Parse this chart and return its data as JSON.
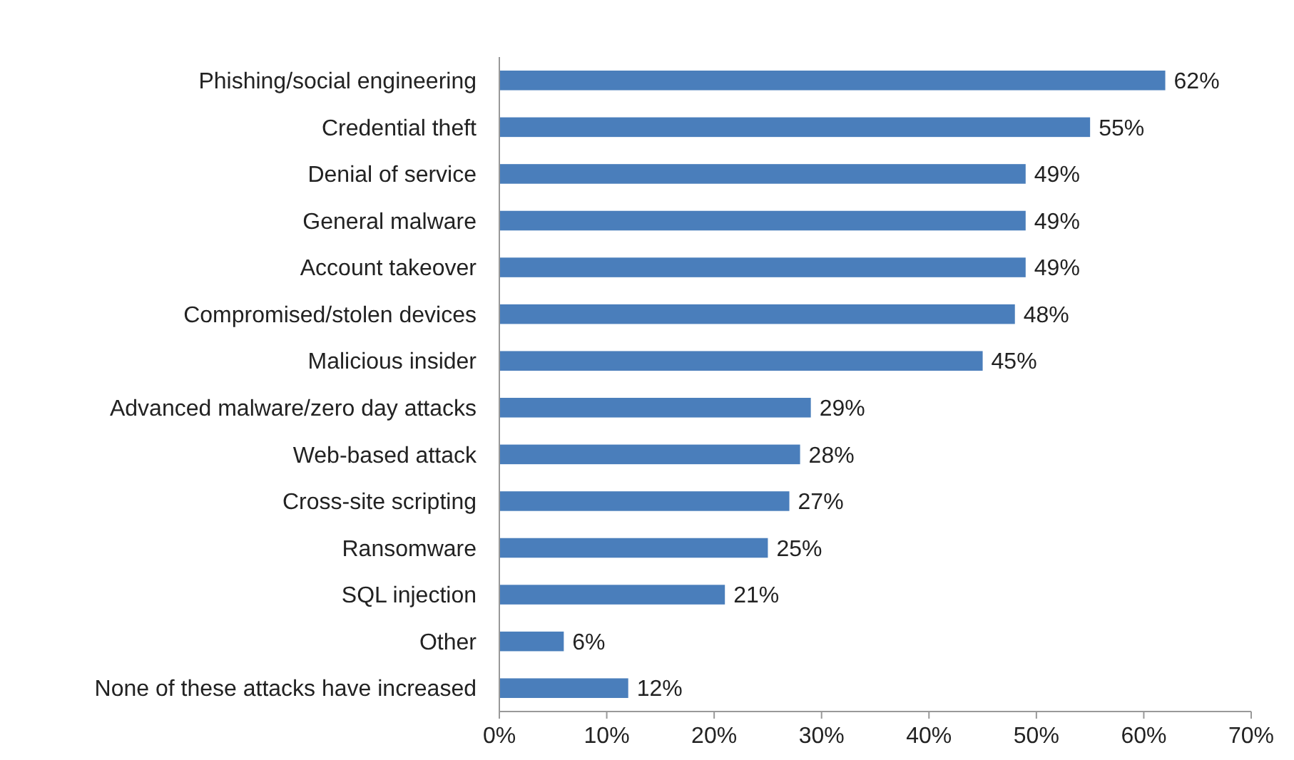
{
  "chart_data": {
    "type": "bar",
    "orientation": "horizontal",
    "categories": [
      "Phishing/social engineering",
      "Credential theft",
      "Denial of service",
      "General malware",
      "Account takeover",
      "Compromised/stolen devices",
      "Malicious insider",
      "Advanced malware/zero day attacks",
      "Web-based attack",
      "Cross-site scripting",
      "Ransomware",
      "SQL injection",
      "Other",
      "None of these attacks have increased"
    ],
    "values": [
      62,
      55,
      49,
      49,
      49,
      48,
      45,
      29,
      28,
      27,
      25,
      21,
      6,
      12
    ],
    "color": "#4a7ebb",
    "value_labels": [
      "62%",
      "55%",
      "49%",
      "49%",
      "49%",
      "48%",
      "45%",
      "29%",
      "28%",
      "27%",
      "25%",
      "21%",
      "6%",
      "12%"
    ],
    "xlim": [
      0,
      70
    ],
    "xticks": [
      {
        "value": 0,
        "label": "0%"
      },
      {
        "value": 10,
        "label": "10%"
      },
      {
        "value": 20,
        "label": "20%"
      },
      {
        "value": 30,
        "label": "30%"
      },
      {
        "value": 40,
        "label": "40%"
      },
      {
        "value": 50,
        "label": "50%"
      },
      {
        "value": 60,
        "label": "60%"
      },
      {
        "value": 70,
        "label": "70%"
      }
    ],
    "grid": false
  }
}
